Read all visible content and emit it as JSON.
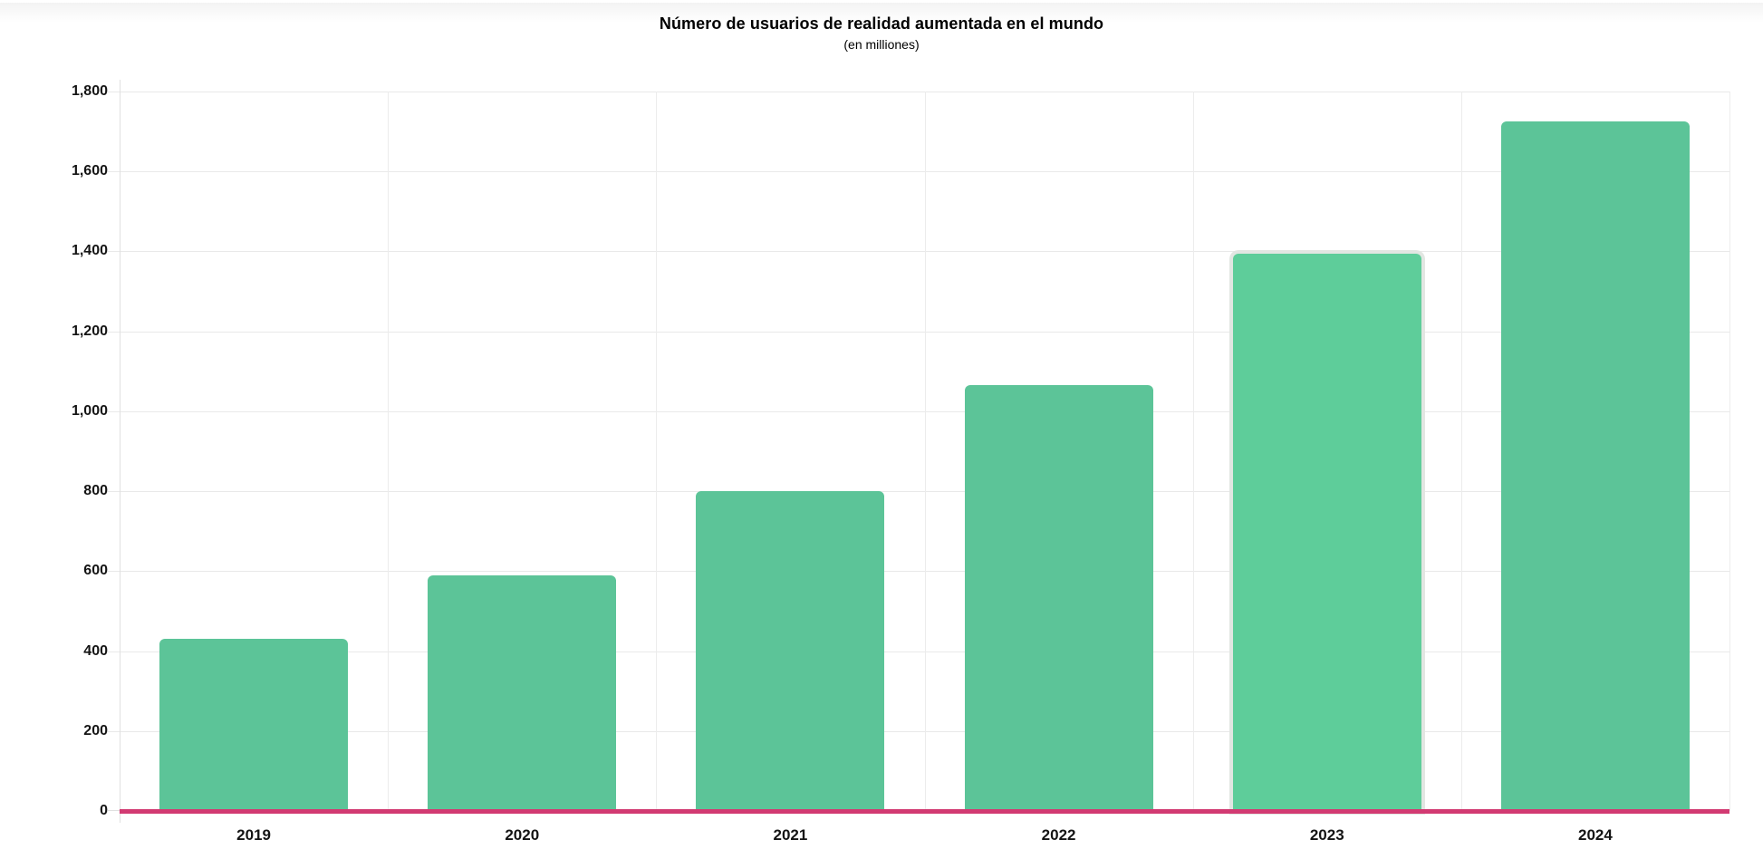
{
  "chart_data": {
    "type": "bar",
    "title": "Número de usuarios de realidad aumentada en el mundo",
    "subtitle": "(en milliones)",
    "categories": [
      "2019",
      "2020",
      "2021",
      "2022",
      "2023",
      "2024"
    ],
    "values": [
      430,
      590,
      800,
      1065,
      1395,
      1725
    ],
    "xlabel": "",
    "ylabel": "",
    "ylim": [
      0,
      1800
    ],
    "ytick_interval": 200,
    "ytick_labels": [
      "0",
      "200",
      "400",
      "600",
      "800",
      "1,000",
      "1,200",
      "1,400",
      "1,600",
      "1,800"
    ],
    "grid": true,
    "legend": false,
    "highlight_index": 4,
    "highlighted_category": "2023"
  },
  "style": {
    "bar_color": "#5cc498",
    "bar_highlight_color": "#5ecd9a",
    "bar_highlight_outline": "#e2e6e2",
    "baseline_color": "#d23a72",
    "hgrid_color": "#e9e9e9",
    "vgrid_color": "#ececec",
    "tick_color": "#e0e0e0",
    "axis_label_color": "#141414",
    "title_color": "#000000",
    "top_strip_color": "#f3f3f3"
  }
}
